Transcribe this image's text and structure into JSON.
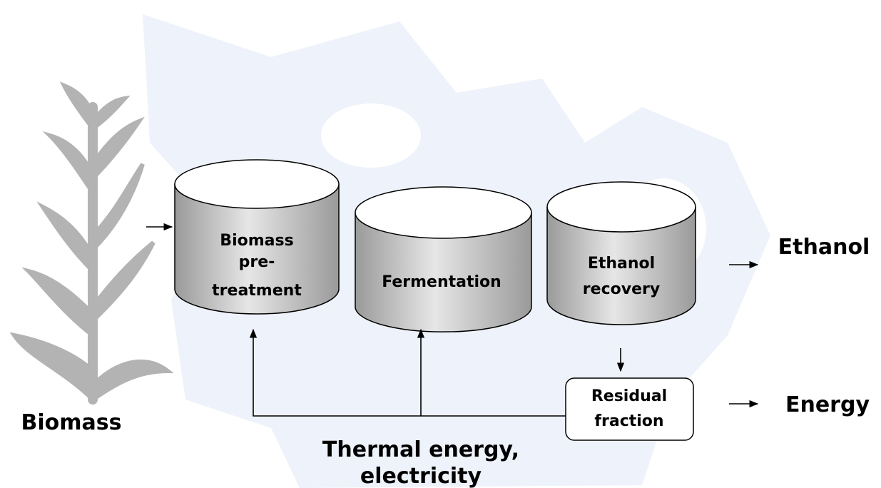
{
  "input": {
    "label": "Biomass"
  },
  "nodes": [
    {
      "lines": [
        "Biomass",
        "pre-",
        "treatment"
      ]
    },
    {
      "lines": [
        "Fermentation"
      ]
    },
    {
      "lines": [
        "Ethanol",
        "recovery"
      ]
    },
    {
      "lines": [
        "Residual",
        "fraction"
      ]
    }
  ],
  "outputs": [
    "Ethanol",
    "Energy"
  ],
  "feedback": {
    "lines": [
      "Thermal energy,",
      "electricity"
    ]
  }
}
